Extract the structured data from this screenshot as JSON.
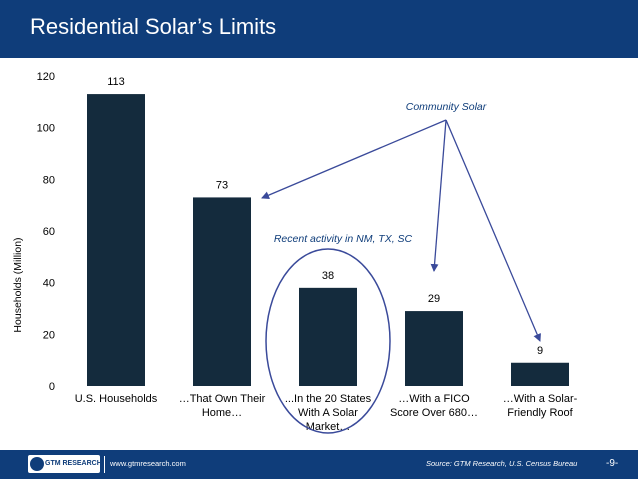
{
  "header": {
    "title": "Residential Solar’s Limits"
  },
  "footer": {
    "logo_text": "GTM RESEARCH",
    "url": "www.gtmresearch.com",
    "source": "Source: GTM Research, U.S. Census Bureau",
    "page": "-9-"
  },
  "colors": {
    "header_bg": "#0f3d7a",
    "bar": "#142b3d",
    "arrow": "#3a4a9a",
    "annotation": "#0f3d7a"
  },
  "chart_data": {
    "type": "bar",
    "categories": [
      [
        "U.S. Households"
      ],
      [
        "…That Own Their",
        "Home…"
      ],
      [
        "...In the 20 States",
        "With A Solar",
        "Market…"
      ],
      [
        "…With a FICO",
        "Score Over 680…"
      ],
      [
        "…With a Solar-",
        "Friendly Roof"
      ]
    ],
    "values": [
      113,
      73,
      38,
      29,
      9
    ],
    "ylabel": "Households (Million)",
    "ylim": [
      0,
      120
    ],
    "yticks": [
      0,
      20,
      40,
      60,
      80,
      100,
      120
    ],
    "grid": false,
    "legend": "none",
    "annotations": [
      {
        "text": "Community Solar",
        "points_to_categories": [
          1,
          3,
          4
        ]
      },
      {
        "text": "Recent activity in NM, TX, SC",
        "highlights_category": 2
      }
    ]
  }
}
